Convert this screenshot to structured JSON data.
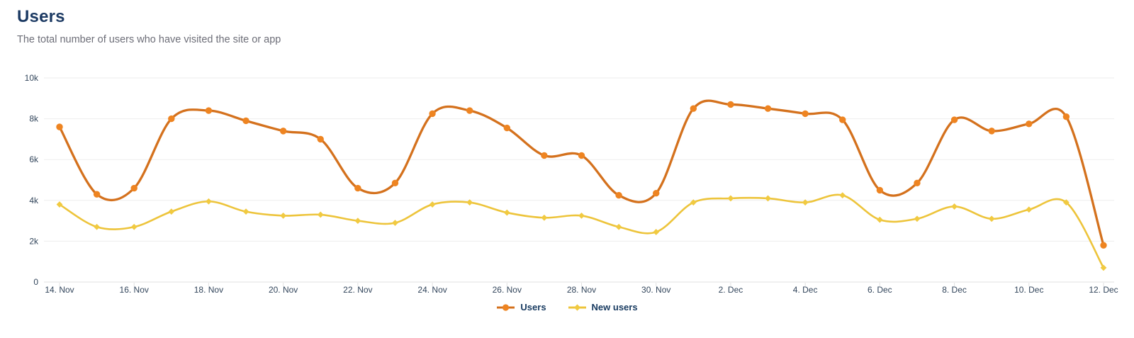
{
  "header": {
    "title": "Users",
    "subtitle": "The total number of users who have visited the site or app"
  },
  "chart_data": {
    "type": "line",
    "title": "Users",
    "ylim": [
      0,
      10000
    ],
    "grid": "horizontal",
    "legend_position": "bottom",
    "x_tick_step": 2,
    "y_ticks": [
      {
        "label": "10k",
        "value": 10000
      },
      {
        "label": "8k",
        "value": 8000
      },
      {
        "label": "6k",
        "value": 6000
      },
      {
        "label": "4k",
        "value": 4000
      },
      {
        "label": "2k",
        "value": 2000
      },
      {
        "label": "0",
        "value": 0
      }
    ],
    "categories": [
      "14. Nov",
      "15. Nov",
      "16. Nov",
      "17. Nov",
      "18. Nov",
      "19. Nov",
      "20. Nov",
      "21. Nov",
      "22. Nov",
      "23. Nov",
      "24. Nov",
      "25. Nov",
      "26. Nov",
      "27. Nov",
      "28. Nov",
      "29. Nov",
      "30. Nov",
      "1. Dec",
      "2. Dec",
      "3. Dec",
      "4. Dec",
      "5. Dec",
      "6. Dec",
      "7. Dec",
      "8. Dec",
      "9. Dec",
      "10. Dec",
      "11. Dec",
      "12. Dec"
    ],
    "series": [
      {
        "name": "Users",
        "color": "#d4711d",
        "marker_color": "#ee8421",
        "marker": "circle",
        "stroke_width": 3.3,
        "values": [
          7600,
          4300,
          4600,
          8000,
          8400,
          7900,
          7400,
          7000,
          4600,
          4850,
          8250,
          8400,
          7550,
          6200,
          6200,
          4250,
          4350,
          8500,
          8700,
          8500,
          8250,
          7950,
          4500,
          4850,
          7950,
          7400,
          7750,
          8100,
          1800
        ]
      },
      {
        "name": "New users",
        "color": "#edc43b",
        "marker_color": "#f1ca41",
        "marker": "diamond",
        "stroke_width": 2.6,
        "values": [
          3800,
          2700,
          2700,
          3450,
          3950,
          3450,
          3250,
          3300,
          3000,
          2900,
          3800,
          3900,
          3400,
          3150,
          3250,
          2700,
          2450,
          3900,
          4100,
          4100,
          3900,
          4250,
          3050,
          3100,
          3700,
          3100,
          3550,
          3900,
          700
        ]
      }
    ],
    "colors": {
      "title": "#1c3a63",
      "subtitle": "#6d6e78",
      "axis_label": "#33465c",
      "gridline": "#ededed",
      "axis_line": "#e2e2e2"
    }
  }
}
